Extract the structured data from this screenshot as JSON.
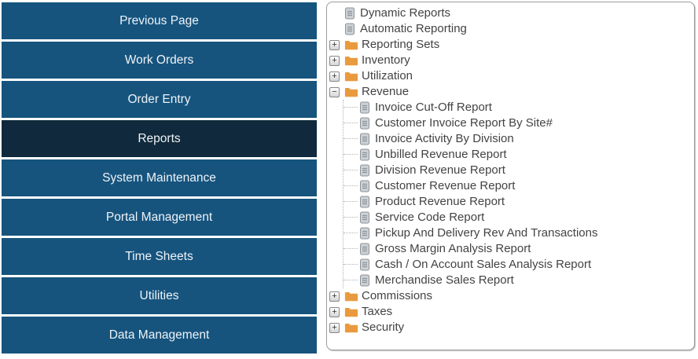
{
  "colors": {
    "nav_button": "#16547e",
    "nav_button_selected": "#10293c",
    "nav_text": "#eef3f7",
    "folder": "#EA9A3E",
    "document_fill": "#ccd1d5",
    "document_stroke": "#8d9399",
    "tree_text": "#434343",
    "panel_border": "#9b9b9b"
  },
  "sidebar": {
    "items": [
      {
        "label": "Previous Page",
        "selected": false
      },
      {
        "label": "Work Orders",
        "selected": false
      },
      {
        "label": "Order Entry",
        "selected": false
      },
      {
        "label": "Reports",
        "selected": true
      },
      {
        "label": "System Maintenance",
        "selected": false
      },
      {
        "label": "Portal Management",
        "selected": false
      },
      {
        "label": "Time Sheets",
        "selected": false
      },
      {
        "label": "Utilities",
        "selected": false
      },
      {
        "label": "Data Management",
        "selected": false
      }
    ]
  },
  "tree": {
    "items": [
      {
        "type": "document",
        "icon": "document-icon",
        "label": "Dynamic Reports"
      },
      {
        "type": "document",
        "icon": "document-icon",
        "label": "Automatic Reporting"
      },
      {
        "type": "folder",
        "expander": "plus-icon",
        "icon": "folder-icon",
        "label": "Reporting Sets"
      },
      {
        "type": "folder",
        "expander": "plus-icon",
        "icon": "folder-icon",
        "label": "Inventory"
      },
      {
        "type": "folder",
        "expander": "plus-icon",
        "icon": "folder-icon",
        "label": "Utilization"
      },
      {
        "type": "folder",
        "expander": "minus-icon",
        "icon": "folder-icon",
        "label": "Revenue",
        "children": [
          {
            "icon": "document-icon",
            "label": "Invoice Cut-Off Report"
          },
          {
            "icon": "document-icon",
            "label": "Customer Invoice Report By Site#"
          },
          {
            "icon": "document-icon",
            "label": "Invoice Activity By Division"
          },
          {
            "icon": "document-icon",
            "label": "Unbilled Revenue Report"
          },
          {
            "icon": "document-icon",
            "label": "Division Revenue Report"
          },
          {
            "icon": "document-icon",
            "label": "Customer Revenue Report"
          },
          {
            "icon": "document-icon",
            "label": "Product Revenue Report"
          },
          {
            "icon": "document-icon",
            "label": "Service Code Report"
          },
          {
            "icon": "document-icon",
            "label": "Pickup And Delivery Rev And Transactions"
          },
          {
            "icon": "document-icon",
            "label": "Gross Margin Analysis Report"
          },
          {
            "icon": "document-icon",
            "label": "Cash / On Account Sales Analysis Report"
          },
          {
            "icon": "document-icon",
            "label": "Merchandise Sales Report"
          }
        ]
      },
      {
        "type": "folder",
        "expander": "plus-icon",
        "icon": "folder-icon",
        "label": "Commissions"
      },
      {
        "type": "folder",
        "expander": "plus-icon",
        "icon": "folder-icon",
        "label": "Taxes"
      },
      {
        "type": "folder",
        "expander": "plus-icon",
        "icon": "folder-icon",
        "label": "Security"
      }
    ]
  }
}
